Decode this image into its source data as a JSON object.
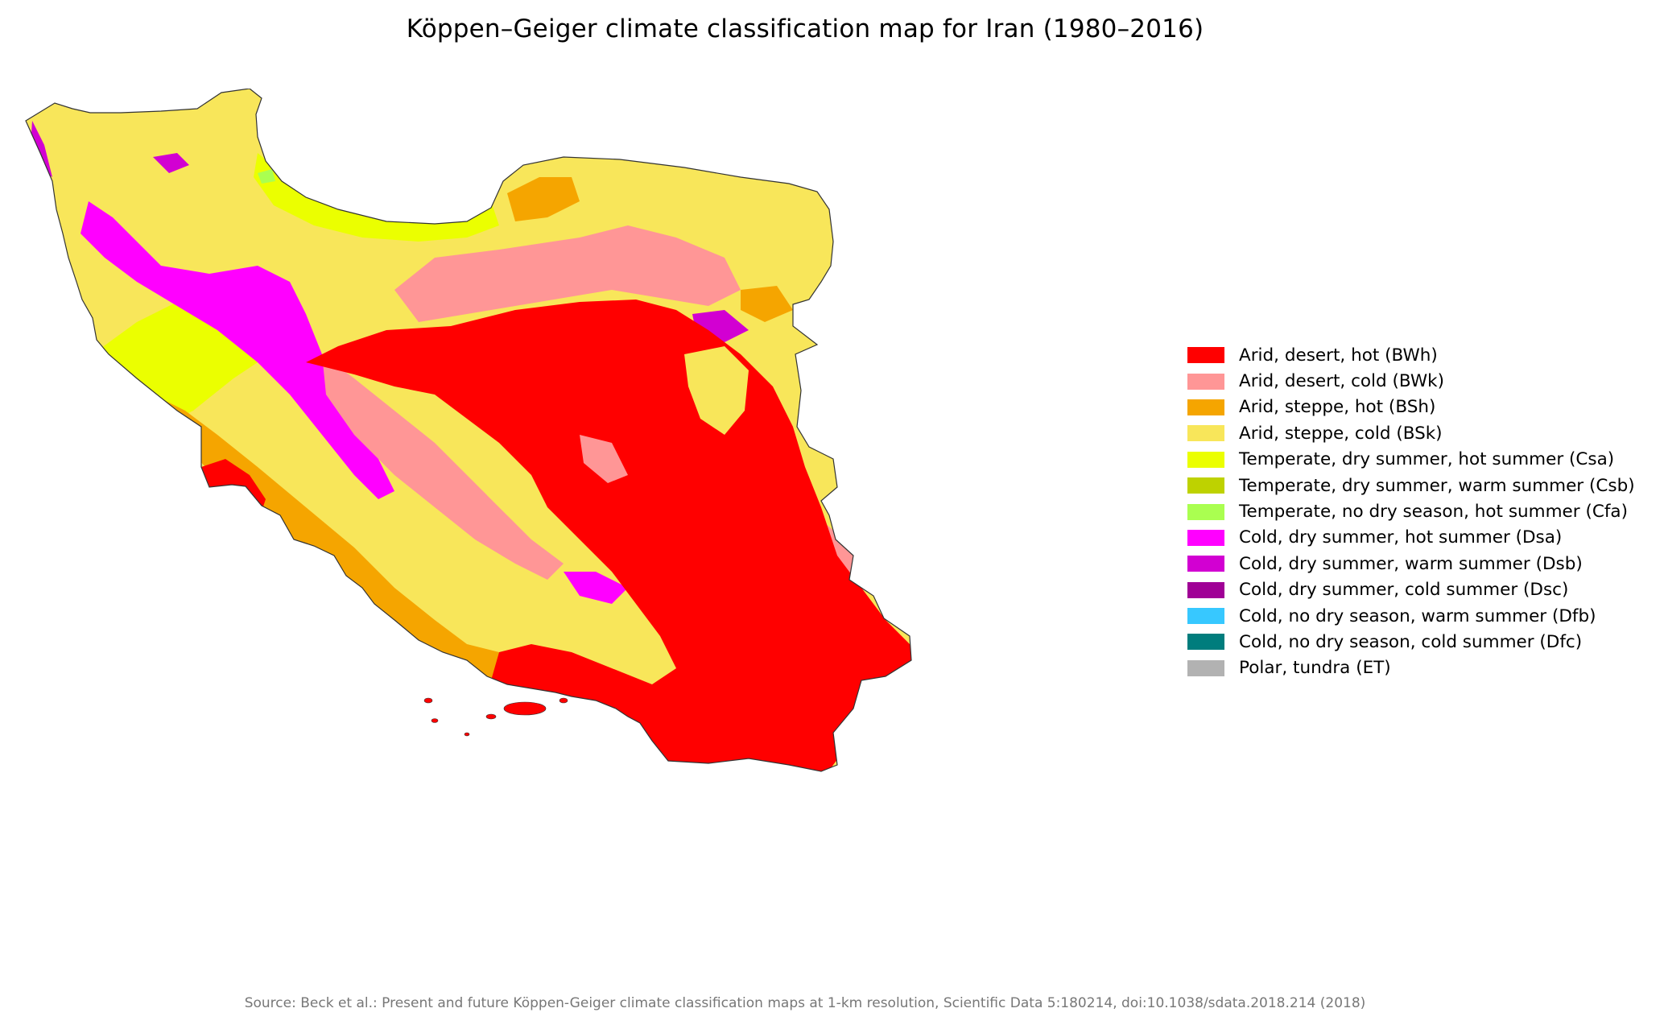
{
  "title": "Köppen–Geiger climate classification map for Iran (1980–2016)",
  "source": "Source: Beck et al.: Present and future Köppen-Geiger climate classification maps at 1-km resolution, Scientific Data 5:180214, doi:10.1038/sdata.2018.214 (2018)",
  "legend": [
    {
      "label": "Arid, desert, hot (BWh)",
      "color": "#ff0000"
    },
    {
      "label": "Arid, desert, cold (BWk)",
      "color": "#ff9696"
    },
    {
      "label": "Arid, steppe, hot (BSh)",
      "color": "#f5a500"
    },
    {
      "label": "Arid, steppe, cold (BSk)",
      "color": "#f8e65a"
    },
    {
      "label": "Temperate, dry summer, hot summer (Csa)",
      "color": "#ebff00"
    },
    {
      "label": "Temperate, dry summer, warm summer (Csb)",
      "color": "#bed200"
    },
    {
      "label": "Temperate, no dry season, hot summer (Cfa)",
      "color": "#aaff50"
    },
    {
      "label": "Cold, dry summer, hot summer (Dsa)",
      "color": "#ff00ff"
    },
    {
      "label": "Cold, dry summer, warm summer (Dsb)",
      "color": "#d200d2"
    },
    {
      "label": "Cold, dry summer, cold summer (Dsc)",
      "color": "#a00096"
    },
    {
      "label": "Cold, no dry season, warm summer (Dfb)",
      "color": "#37c8ff"
    },
    {
      "label": "Cold, no dry season, cold summer (Dfc)",
      "color": "#007d7d"
    },
    {
      "label": "Polar, tundra (ET)",
      "color": "#b2b2b2"
    }
  ]
}
